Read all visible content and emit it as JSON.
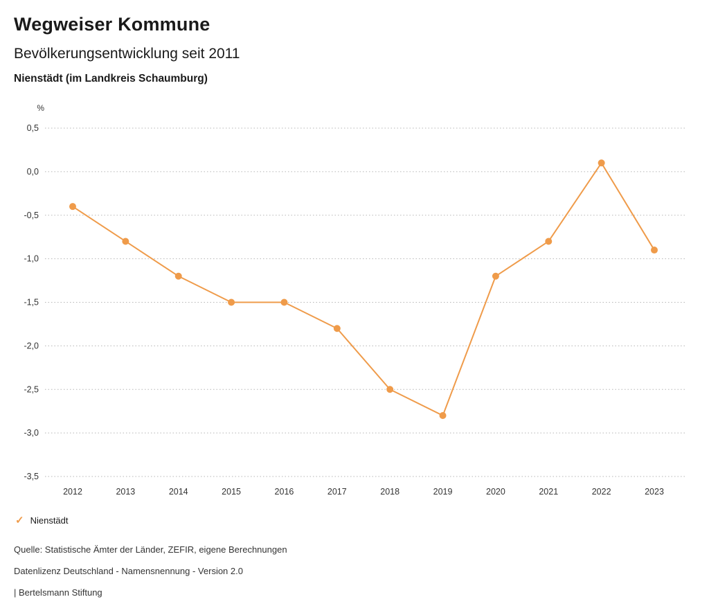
{
  "header": {
    "title": "Wegweiser Kommune",
    "subtitle": "Bevölkerungsentwicklung seit 2011",
    "region": "Nienstädt (im Landkreis Schaumburg)"
  },
  "legend": {
    "check_icon": "✓",
    "label": "Nienstädt"
  },
  "footer": {
    "source": "Quelle: Statistische Ämter der Länder, ZEFIR, eigene Berechnungen",
    "license": "Datenlizenz Deutschland - Namensnennung - Version 2.0",
    "attribution": "| Bertelsmann Stiftung"
  },
  "colors": {
    "accent_orange": "#ef9b4a",
    "gridline": "#b5b5b5",
    "axis_text": "#333333"
  },
  "chart_data": {
    "type": "line",
    "title": "Bevölkerungsentwicklung seit 2011",
    "subtitle": "Nienstädt (im Landkreis Schaumburg)",
    "x": [
      2012,
      2013,
      2014,
      2015,
      2016,
      2017,
      2018,
      2019,
      2020,
      2021,
      2022,
      2023
    ],
    "series": [
      {
        "name": "Nienstädt",
        "color": "#ef9b4a",
        "values": [
          -0.4,
          -0.8,
          -1.2,
          -1.5,
          -1.5,
          -1.8,
          -2.5,
          -2.8,
          -1.2,
          -0.8,
          0.1,
          -0.9
        ]
      }
    ],
    "xlabel": "",
    "ylabel": "%",
    "ylim": [
      -3.5,
      0.5
    ],
    "ytick_step": 0.5,
    "grid": "horizontal-dotted",
    "legend_position": "bottom-left",
    "decimal_separator": ","
  }
}
